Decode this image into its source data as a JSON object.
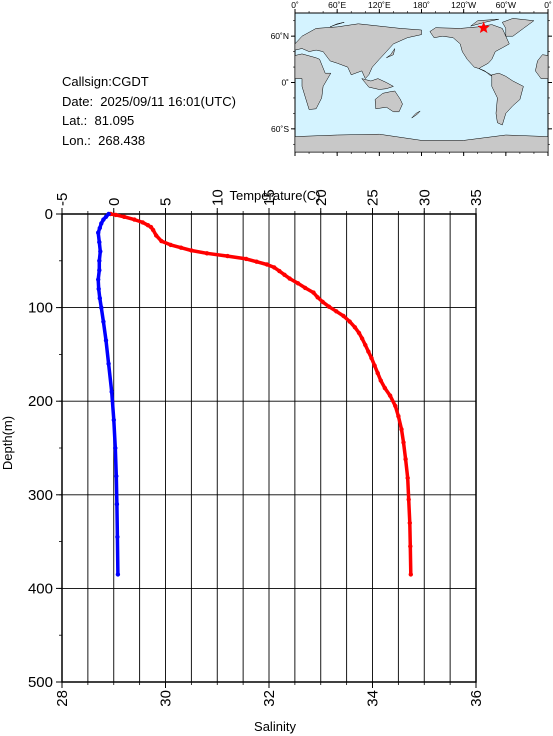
{
  "station": {
    "callsign_line": "Callsign:CGDT",
    "date_line": "Date:  2025/09/11 16:01(UTC)",
    "lat_line": "Lat.:  81.095",
    "lon_line": "Lon.:  268.438"
  },
  "map": {
    "lon_labels": [
      "0˚",
      "60˚E",
      "120˚E",
      "180˚",
      "120˚W",
      "60˚W",
      "0˚"
    ],
    "lat_labels": [
      "60˚N",
      "0˚",
      "60˚S"
    ],
    "ocean_color": "#d4f3ff",
    "land_color": "#c8c8c8",
    "marker_color": "#ff0000",
    "station_lat": 81.095,
    "station_lon": 268.438
  },
  "chart_data": {
    "type": "line",
    "ylabel": "Depth(m)",
    "ylim": [
      500,
      0
    ],
    "yticks": [
      0,
      100,
      200,
      300,
      400,
      500
    ],
    "top_axis": {
      "label": "Temperature(C)",
      "lim": [
        -5,
        35
      ],
      "ticks": [
        -5,
        0,
        5,
        10,
        15,
        20,
        25,
        30,
        35
      ]
    },
    "bottom_axis": {
      "label": "Salinity",
      "lim": [
        28,
        36
      ],
      "ticks": [
        28,
        30,
        32,
        34,
        36
      ]
    },
    "grid": true,
    "series": [
      {
        "color": "#ff0000",
        "axis": "top",
        "x": [
          -0.3,
          0.2,
          1.0,
          2.0,
          2.8,
          3.3,
          3.6,
          3.8,
          4.1,
          4.6,
          5.5,
          6.5,
          7.5,
          9.0,
          11.0,
          12.8,
          13.8,
          14.8,
          15.5,
          16.0,
          16.5,
          17.0,
          17.8,
          18.5,
          19.3,
          19.7,
          20.2,
          20.8,
          21.5,
          22.2,
          22.8,
          23.3,
          23.7,
          24.0,
          24.3,
          24.6,
          24.9,
          25.2,
          25.5,
          25.8,
          26.2,
          26.7,
          27.2,
          27.5,
          27.8,
          28.0,
          28.2,
          28.4,
          28.5,
          28.6,
          28.65,
          28.7
        ],
        "y": [
          0,
          1,
          3,
          6,
          9,
          12,
          14,
          17,
          23,
          29,
          33,
          36,
          39,
          42,
          45,
          48,
          51,
          54,
          57,
          61,
          65,
          69,
          74,
          79,
          84,
          89,
          94,
          99,
          104,
          109,
          115,
          121,
          127,
          133,
          140,
          147,
          154,
          162,
          170,
          178,
          186,
          194,
          205,
          216,
          230,
          244,
          262,
          282,
          305,
          330,
          355,
          385
        ]
      },
      {
        "color": "#0000ff",
        "axis": "bottom",
        "x": [
          28.9,
          28.85,
          28.8,
          28.76,
          28.73,
          28.7,
          28.72,
          28.74,
          28.72,
          28.72,
          28.7,
          28.71,
          28.73,
          28.76,
          28.8,
          28.85,
          28.9,
          28.96,
          29.0,
          29.03,
          29.05,
          29.06,
          29.07,
          29.08
        ],
        "y": [
          0,
          3,
          6,
          10,
          15,
          20,
          30,
          40,
          50,
          60,
          70,
          80,
          90,
          100,
          115,
          135,
          160,
          190,
          220,
          250,
          280,
          310,
          345,
          385
        ]
      }
    ]
  }
}
